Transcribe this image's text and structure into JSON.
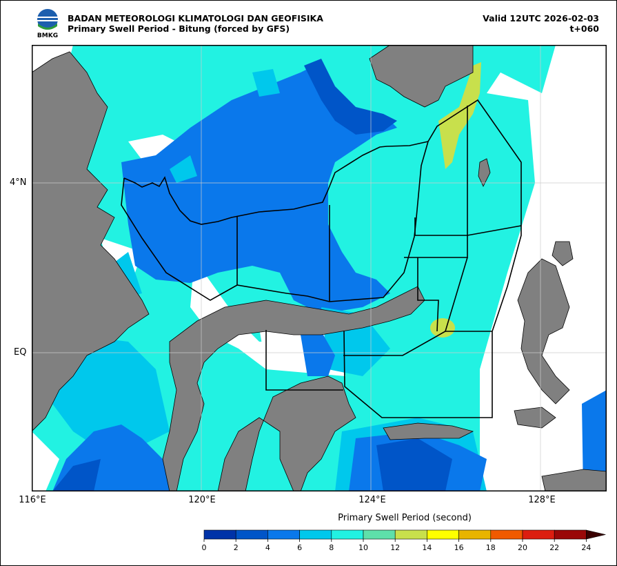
{
  "header": {
    "agency": "BADAN METEOROLOGI KLIMATOLOGI DAN GEOFISIKA",
    "product": "Primary Swell Period - Bitung (forced by GFS)",
    "valid": "Valid 12UTC 2026-02-03",
    "lead": "t+060",
    "logo_text": "BMKG"
  },
  "axes": {
    "lat_labels": [
      "4°N",
      "EQ"
    ],
    "lon_labels": [
      "116°E",
      "120°E",
      "124°E",
      "128°E"
    ]
  },
  "legend": {
    "title": "Primary Swell Period (second)",
    "ticks": [
      "0",
      "2",
      "4",
      "6",
      "8",
      "10",
      "12",
      "14",
      "16",
      "18",
      "20",
      "22",
      "24"
    ],
    "colors": [
      "#0033a8",
      "#0055c8",
      "#0a78eb",
      "#00c8ec",
      "#22f2e2",
      "#5ee0aa",
      "#c8e04c",
      "#ffff00",
      "#e8b400",
      "#f05a00",
      "#dc1e10",
      "#9a0808",
      "#3a0000"
    ]
  },
  "map_colors": {
    "land": "#808080",
    "no_data": "#ffffff",
    "boundary": "#000000",
    "grid": "#cccccc"
  }
}
